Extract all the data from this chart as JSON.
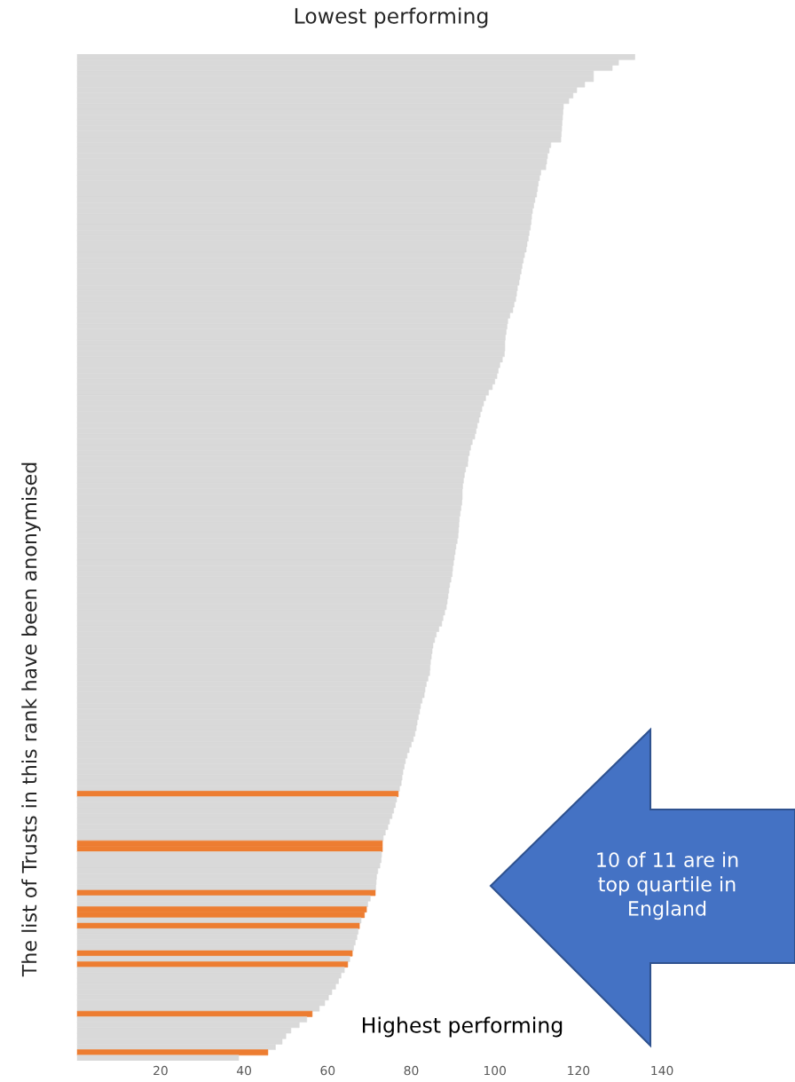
{
  "chart_data": {
    "type": "bar",
    "orientation": "horizontal",
    "title": "Lowest performing",
    "ylabel": "The list of Trusts in this rank have been anonymised",
    "annotations": [
      "Highest performing",
      "10 of 11 are in\ntop quartile in\nEngland"
    ],
    "categories": [
      null,
      null,
      null,
      null,
      null,
      null,
      null,
      null,
      null,
      null,
      null,
      null,
      null,
      null,
      null,
      null,
      null,
      null,
      null,
      null,
      null,
      null,
      null,
      null,
      null,
      null,
      null,
      null,
      null,
      null,
      null,
      null,
      null,
      null,
      null,
      null,
      null,
      null,
      null,
      null,
      null,
      null,
      null,
      null,
      null,
      null,
      null,
      null,
      null,
      null,
      null,
      null,
      null,
      null,
      null,
      null,
      null,
      null,
      null,
      null,
      null,
      null,
      null,
      null,
      null,
      null,
      null,
      null,
      null,
      null,
      null,
      null,
      null,
      null,
      null,
      null,
      null,
      null,
      null,
      null,
      null,
      null,
      null,
      null,
      null,
      null,
      null,
      null,
      null,
      null,
      null,
      null,
      null,
      null,
      null,
      null,
      null,
      null,
      null,
      null,
      null,
      null,
      null,
      null,
      null,
      null,
      null,
      null,
      null,
      null,
      null,
      null,
      null,
      null,
      null,
      null,
      null,
      null,
      null,
      null,
      null,
      null,
      null,
      null,
      null,
      null,
      null,
      null,
      null,
      null,
      null,
      null,
      null,
      null,
      null,
      null,
      null,
      null,
      null,
      null,
      null,
      null,
      null,
      null,
      null,
      null,
      null,
      null,
      null,
      null,
      null,
      null,
      null,
      null,
      null,
      null,
      null,
      null,
      null,
      null,
      null,
      null,
      null,
      null,
      null,
      null,
      null,
      null,
      null,
      null,
      null,
      null,
      null,
      null,
      null,
      null,
      null,
      null,
      null,
      null,
      null,
      null,
      null
    ],
    "values": [
      133.5,
      129.6,
      128.1,
      123.6,
      123.6,
      121.5,
      119.6,
      118.7,
      117.7,
      116.4,
      116.3,
      116.2,
      116.1,
      116.0,
      115.9,
      115.8,
      113.4,
      113.0,
      112.6,
      112.4,
      112.2,
      111.0,
      110.7,
      110.4,
      110.2,
      110.0,
      109.6,
      109.3,
      109.0,
      108.8,
      108.7,
      108.5,
      108.2,
      108.0,
      107.7,
      107.5,
      107.1,
      106.8,
      106.5,
      106.3,
      106.0,
      105.8,
      105.4,
      105.2,
      105.0,
      104.6,
      104.3,
      103.6,
      103.1,
      102.9,
      102.7,
      102.5,
      102.4,
      102.4,
      102.3,
      101.8,
      101.2,
      100.8,
      100.5,
      100.0,
      99.4,
      98.5,
      97.8,
      97.3,
      96.9,
      96.5,
      96.2,
      95.8,
      95.5,
      95.2,
      94.6,
      94.2,
      93.9,
      93.6,
      93.5,
      93.0,
      92.7,
      92.5,
      92.3,
      92.2,
      92.2,
      92.1,
      91.9,
      91.7,
      91.5,
      91.4,
      91.3,
      91.2,
      91.0,
      90.7,
      90.5,
      90.3,
      90.1,
      89.9,
      89.8,
      89.5,
      89.2,
      89.0,
      88.8,
      88.6,
      88.4,
      88.0,
      87.6,
      87.3,
      86.6,
      86.0,
      85.6,
      85.2,
      85.0,
      84.8,
      84.6,
      84.5,
      84.4,
      84.0,
      83.6,
      83.3,
      83.1,
      82.6,
      82.2,
      82.0,
      81.7,
      81.4,
      81.2,
      80.9,
      80.5,
      80.0,
      79.5,
      79.0,
      78.6,
      78.3,
      78.0,
      77.8,
      77.6,
      77.2,
      76.9,
      76.5,
      76.2,
      75.8,
      75.4,
      74.8,
      74.4,
      73.8,
      73.3,
      73.1,
      73.1,
      72.9,
      72.8,
      72.5,
      72.0,
      71.7,
      71.6,
      71.5,
      71.4,
      70.2,
      69.6,
      69.3,
      68.8,
      68.0,
      67.6,
      67.3,
      67.0,
      66.6,
      66.2,
      65.9,
      65.3,
      64.8,
      64.0,
      63.2,
      62.6,
      61.9,
      61.0,
      60.2,
      59.3,
      58.0,
      56.3,
      55.0,
      53.2,
      51.2,
      50.0,
      49.1,
      47.5,
      45.7,
      38.7
    ],
    "colors": [
      "#d9d9d9",
      "#d9d9d9",
      "#d9d9d9",
      "#d9d9d9",
      "#d9d9d9",
      "#d9d9d9",
      "#d9d9d9",
      "#d9d9d9",
      "#d9d9d9",
      "#d9d9d9",
      "#d9d9d9",
      "#d9d9d9",
      "#d9d9d9",
      "#d9d9d9",
      "#d9d9d9",
      "#d9d9d9",
      "#d9d9d9",
      "#d9d9d9",
      "#d9d9d9",
      "#d9d9d9",
      "#d9d9d9",
      "#d9d9d9",
      "#d9d9d9",
      "#d9d9d9",
      "#d9d9d9",
      "#d9d9d9",
      "#d9d9d9",
      "#d9d9d9",
      "#d9d9d9",
      "#d9d9d9",
      "#d9d9d9",
      "#d9d9d9",
      "#d9d9d9",
      "#d9d9d9",
      "#d9d9d9",
      "#d9d9d9",
      "#d9d9d9",
      "#d9d9d9",
      "#d9d9d9",
      "#d9d9d9",
      "#d9d9d9",
      "#d9d9d9",
      "#d9d9d9",
      "#d9d9d9",
      "#d9d9d9",
      "#d9d9d9",
      "#d9d9d9",
      "#d9d9d9",
      "#d9d9d9",
      "#d9d9d9",
      "#d9d9d9",
      "#d9d9d9",
      "#d9d9d9",
      "#d9d9d9",
      "#d9d9d9",
      "#d9d9d9",
      "#d9d9d9",
      "#d9d9d9",
      "#d9d9d9",
      "#d9d9d9",
      "#d9d9d9",
      "#d9d9d9",
      "#d9d9d9",
      "#d9d9d9",
      "#d9d9d9",
      "#d9d9d9",
      "#d9d9d9",
      "#d9d9d9",
      "#d9d9d9",
      "#d9d9d9",
      "#d9d9d9",
      "#d9d9d9",
      "#d9d9d9",
      "#d9d9d9",
      "#d9d9d9",
      "#d9d9d9",
      "#d9d9d9",
      "#d9d9d9",
      "#d9d9d9",
      "#d9d9d9",
      "#d9d9d9",
      "#d9d9d9",
      "#d9d9d9",
      "#d9d9d9",
      "#d9d9d9",
      "#d9d9d9",
      "#d9d9d9",
      "#d9d9d9",
      "#d9d9d9",
      "#d9d9d9",
      "#d9d9d9",
      "#d9d9d9",
      "#d9d9d9",
      "#d9d9d9",
      "#d9d9d9",
      "#d9d9d9",
      "#d9d9d9",
      "#d9d9d9",
      "#d9d9d9",
      "#d9d9d9",
      "#d9d9d9",
      "#d9d9d9",
      "#d9d9d9",
      "#d9d9d9",
      "#d9d9d9",
      "#d9d9d9",
      "#d9d9d9",
      "#d9d9d9",
      "#d9d9d9",
      "#d9d9d9",
      "#d9d9d9",
      "#d9d9d9",
      "#d9d9d9",
      "#d9d9d9",
      "#d9d9d9",
      "#d9d9d9",
      "#d9d9d9",
      "#d9d9d9",
      "#d9d9d9",
      "#d9d9d9",
      "#d9d9d9",
      "#d9d9d9",
      "#d9d9d9",
      "#d9d9d9",
      "#d9d9d9",
      "#d9d9d9",
      "#d9d9d9",
      "#d9d9d9",
      "#d9d9d9",
      "#d9d9d9",
      "#d9d9d9",
      "#d9d9d9",
      "#d9d9d9",
      "#d9d9d9",
      "#ed7d31",
      "#d9d9d9",
      "#d9d9d9",
      "#d9d9d9",
      "#d9d9d9",
      "#d9d9d9",
      "#d9d9d9",
      "#d9d9d9",
      "#d9d9d9",
      "#ed7d31",
      "#ed7d31",
      "#d9d9d9",
      "#d9d9d9",
      "#d9d9d9",
      "#d9d9d9",
      "#d9d9d9",
      "#d9d9d9",
      "#d9d9d9",
      "#ed7d31",
      "#d9d9d9",
      "#d9d9d9",
      "#ed7d31",
      "#ed7d31",
      "#d9d9d9",
      "#ed7d31",
      "#d9d9d9",
      "#d9d9d9",
      "#d9d9d9",
      "#d9d9d9",
      "#ed7d31",
      "#d9d9d9",
      "#ed7d31",
      "#d9d9d9",
      "#d9d9d9",
      "#d9d9d9",
      "#d9d9d9",
      "#d9d9d9",
      "#d9d9d9",
      "#d9d9d9",
      "#d9d9d9",
      "#ed7d31",
      "#d9d9d9",
      "#d9d9d9",
      "#d9d9d9",
      "#d9d9d9",
      "#d9d9d9",
      "#d9d9d9",
      "#ed7d31",
      "#d9d9d9"
    ],
    "xlim": [
      0,
      140
    ],
    "xticks": [
      20,
      40,
      60,
      80,
      100,
      120,
      140
    ],
    "tick_labels": "x"
  }
}
